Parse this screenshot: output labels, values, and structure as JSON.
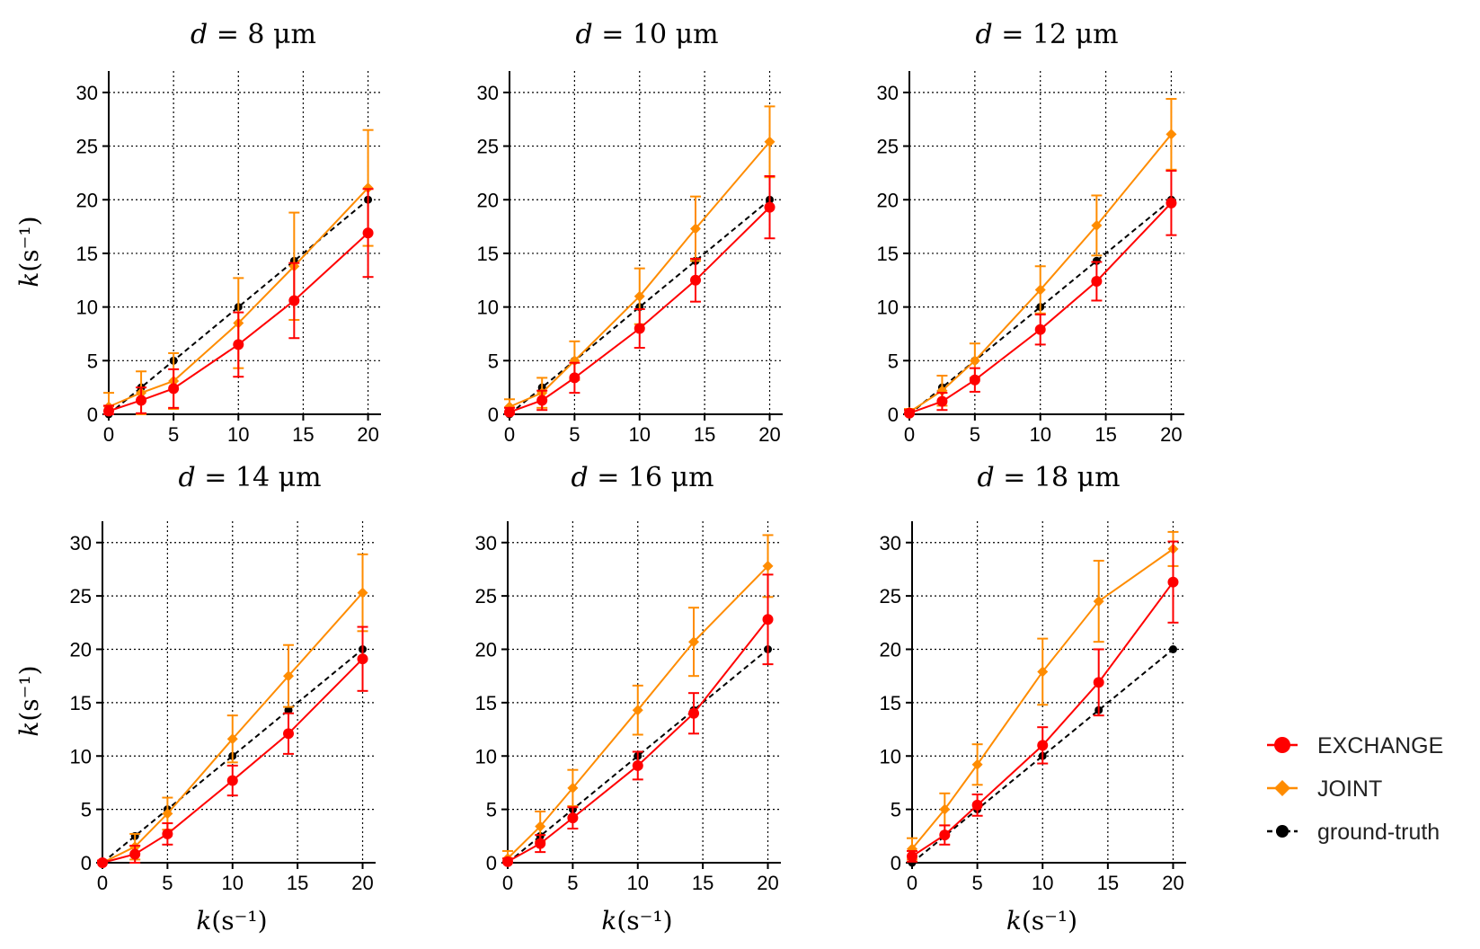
{
  "legend": [
    {
      "key": "exchange",
      "label": "EXCHANGE",
      "color": "#ff0000",
      "marker": "circle",
      "dash": false
    },
    {
      "key": "joint",
      "label": "JOINT",
      "color": "#ff8c00",
      "marker": "diamond",
      "dash": false
    },
    {
      "key": "truth",
      "label": "ground-truth",
      "color": "#000000",
      "marker": "circle",
      "dash": true
    }
  ],
  "axes_label": {
    "var": "k",
    "unit": "(s⁻¹)"
  },
  "chart_data": [
    {
      "type": "line",
      "title": "d = 8 μm",
      "title_var": "d",
      "title_rest": " = 8 μm",
      "xlim": [
        0,
        21
      ],
      "ylim": [
        0,
        32
      ],
      "xticks": [
        0,
        5,
        10,
        15,
        20
      ],
      "yticks": [
        0,
        5,
        10,
        15,
        20,
        25,
        30
      ],
      "x": [
        0,
        2.5,
        5,
        10,
        14.3,
        20
      ],
      "series": [
        {
          "name": "EXCHANGE",
          "values": [
            0.3,
            1.3,
            2.4,
            6.5,
            10.6,
            16.9
          ],
          "err": [
            0.5,
            1.2,
            1.8,
            3.0,
            3.5,
            4.1
          ]
        },
        {
          "name": "JOINT",
          "values": [
            0.7,
            2.0,
            3.1,
            8.5,
            13.8,
            21.1
          ],
          "err": [
            1.3,
            2.0,
            2.6,
            4.2,
            5.0,
            5.4
          ]
        },
        {
          "name": "ground-truth",
          "values": [
            0,
            2.5,
            5,
            10,
            14.3,
            20
          ],
          "err": null
        }
      ],
      "xlabel": "",
      "ylabel": "k(s⁻¹)"
    },
    {
      "type": "line",
      "title": "d = 10 μm",
      "title_var": "d",
      "title_rest": " = 10 μm",
      "xlim": [
        0,
        21
      ],
      "ylim": [
        0,
        32
      ],
      "xticks": [
        0,
        5,
        10,
        15,
        20
      ],
      "yticks": [
        0,
        5,
        10,
        15,
        20,
        25,
        30
      ],
      "x": [
        0,
        2.5,
        5,
        10,
        14.3,
        20
      ],
      "series": [
        {
          "name": "EXCHANGE",
          "values": [
            0.2,
            1.3,
            3.4,
            8.0,
            12.5,
            19.3
          ],
          "err": [
            0.4,
            0.9,
            1.4,
            1.8,
            2.0,
            2.9
          ]
        },
        {
          "name": "JOINT",
          "values": [
            0.7,
            2.0,
            5.0,
            11.0,
            17.3,
            25.4
          ],
          "err": [
            0.7,
            1.4,
            1.8,
            2.6,
            3.0,
            3.3
          ]
        },
        {
          "name": "ground-truth",
          "values": [
            0,
            2.5,
            5,
            10,
            14.3,
            20
          ],
          "err": null
        }
      ],
      "xlabel": "",
      "ylabel": ""
    },
    {
      "type": "line",
      "title": "d = 12 μm",
      "title_var": "d",
      "title_rest": " = 12 μm",
      "xlim": [
        0,
        21
      ],
      "ylim": [
        0,
        32
      ],
      "xticks": [
        0,
        5,
        10,
        15,
        20
      ],
      "yticks": [
        0,
        5,
        10,
        15,
        20,
        25,
        30
      ],
      "x": [
        0,
        2.5,
        5,
        10,
        14.3,
        20
      ],
      "series": [
        {
          "name": "EXCHANGE",
          "values": [
            0.1,
            1.2,
            3.2,
            7.9,
            12.4,
            19.7
          ],
          "err": [
            0.3,
            0.8,
            1.1,
            1.4,
            1.8,
            3.0
          ]
        },
        {
          "name": "JOINT",
          "values": [
            0.2,
            2.2,
            5.0,
            11.6,
            17.6,
            26.1
          ],
          "err": [
            0.3,
            1.4,
            1.6,
            2.2,
            2.8,
            3.3
          ]
        },
        {
          "name": "ground-truth",
          "values": [
            0,
            2.5,
            5,
            10,
            14.3,
            20
          ],
          "err": null
        }
      ],
      "xlabel": "",
      "ylabel": ""
    },
    {
      "type": "line",
      "title": "d = 14 μm",
      "title_var": "d",
      "title_rest": " = 14 μm",
      "xlim": [
        0,
        21
      ],
      "ylim": [
        0,
        32
      ],
      "xticks": [
        0,
        5,
        10,
        15,
        20
      ],
      "yticks": [
        0,
        5,
        10,
        15,
        20,
        25,
        30
      ],
      "x": [
        0,
        2.5,
        5,
        10,
        14.3,
        20
      ],
      "series": [
        {
          "name": "EXCHANGE",
          "values": [
            0.0,
            0.8,
            2.7,
            7.7,
            12.1,
            19.1
          ],
          "err": [
            0.2,
            0.8,
            1.0,
            1.4,
            1.9,
            3.0
          ]
        },
        {
          "name": "JOINT",
          "values": [
            0.0,
            1.5,
            4.6,
            11.6,
            17.5,
            25.3
          ],
          "err": [
            0.2,
            1.2,
            1.5,
            2.2,
            2.9,
            3.6
          ]
        },
        {
          "name": "ground-truth",
          "values": [
            0,
            2.5,
            5,
            10,
            14.3,
            20
          ],
          "err": null
        }
      ],
      "xlabel": "k(s⁻¹)",
      "ylabel": "k(s⁻¹)"
    },
    {
      "type": "line",
      "title": "d = 16 μm",
      "title_var": "d",
      "title_rest": " = 16 μm",
      "xlim": [
        0,
        21
      ],
      "ylim": [
        0,
        32
      ],
      "xticks": [
        0,
        5,
        10,
        15,
        20
      ],
      "yticks": [
        0,
        5,
        10,
        15,
        20,
        25,
        30
      ],
      "x": [
        0,
        2.5,
        5,
        10,
        14.3,
        20
      ],
      "series": [
        {
          "name": "EXCHANGE",
          "values": [
            0.1,
            1.8,
            4.2,
            9.1,
            14.0,
            22.8
          ],
          "err": [
            0.3,
            0.8,
            1.0,
            1.3,
            1.9,
            4.2
          ]
        },
        {
          "name": "JOINT",
          "values": [
            0.4,
            3.4,
            7.0,
            14.3,
            20.7,
            27.8
          ],
          "err": [
            0.7,
            1.4,
            1.7,
            2.3,
            3.2,
            2.9
          ]
        },
        {
          "name": "ground-truth",
          "values": [
            0,
            2.5,
            5,
            10,
            14.3,
            20
          ],
          "err": null
        }
      ],
      "xlabel": "k(s⁻¹)",
      "ylabel": ""
    },
    {
      "type": "line",
      "title": "d = 18 μm",
      "title_var": "d",
      "title_rest": " = 18 μm",
      "xlim": [
        0,
        21
      ],
      "ylim": [
        0,
        32
      ],
      "xticks": [
        0,
        5,
        10,
        15,
        20
      ],
      "yticks": [
        0,
        5,
        10,
        15,
        20,
        25,
        30
      ],
      "x": [
        0,
        2.5,
        5,
        10,
        14.3,
        20
      ],
      "series": [
        {
          "name": "EXCHANGE",
          "values": [
            0.6,
            2.6,
            5.4,
            11.0,
            16.9,
            26.3
          ],
          "err": [
            0.5,
            0.9,
            1.0,
            1.7,
            3.1,
            3.8
          ]
        },
        {
          "name": "JOINT",
          "values": [
            1.3,
            5.0,
            9.2,
            17.9,
            24.5,
            29.4
          ],
          "err": [
            1.0,
            1.5,
            1.9,
            3.1,
            3.8,
            1.6
          ]
        },
        {
          "name": "ground-truth",
          "values": [
            0,
            2.5,
            5,
            10,
            14.3,
            20
          ],
          "err": null
        }
      ],
      "xlabel": "k(s⁻¹)",
      "ylabel": ""
    }
  ]
}
